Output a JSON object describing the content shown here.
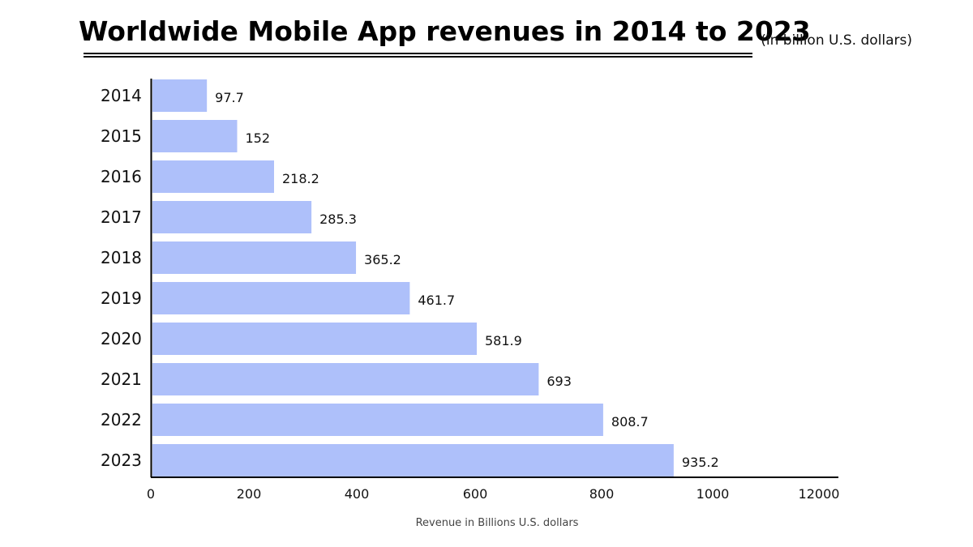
{
  "chart_data": {
    "type": "bar",
    "orientation": "horizontal",
    "title": "Worldwide Mobile App revenues in 2014 to 2023",
    "subtitle": "(in billion U.S. dollars)",
    "categories": [
      "2014",
      "2015",
      "2016",
      "2017",
      "2018",
      "2019",
      "2020",
      "2021",
      "2022",
      "2023"
    ],
    "values": [
      97.7,
      152,
      218.2,
      285.3,
      365.2,
      461.7,
      581.9,
      693,
      808.7,
      935.2
    ],
    "value_labels": [
      "97.7",
      "152",
      "218.2",
      "285.3",
      "365.2",
      "461.7",
      "581.9",
      "693",
      "808.7",
      "935.2"
    ],
    "xticks": [
      "0",
      "200",
      "400",
      "600",
      "800",
      "1000",
      "12000"
    ],
    "xlabel": "Revenue in Billions U.S. dollars",
    "ylabel": "",
    "bar_color": "#aec0fa",
    "grid": false
  }
}
